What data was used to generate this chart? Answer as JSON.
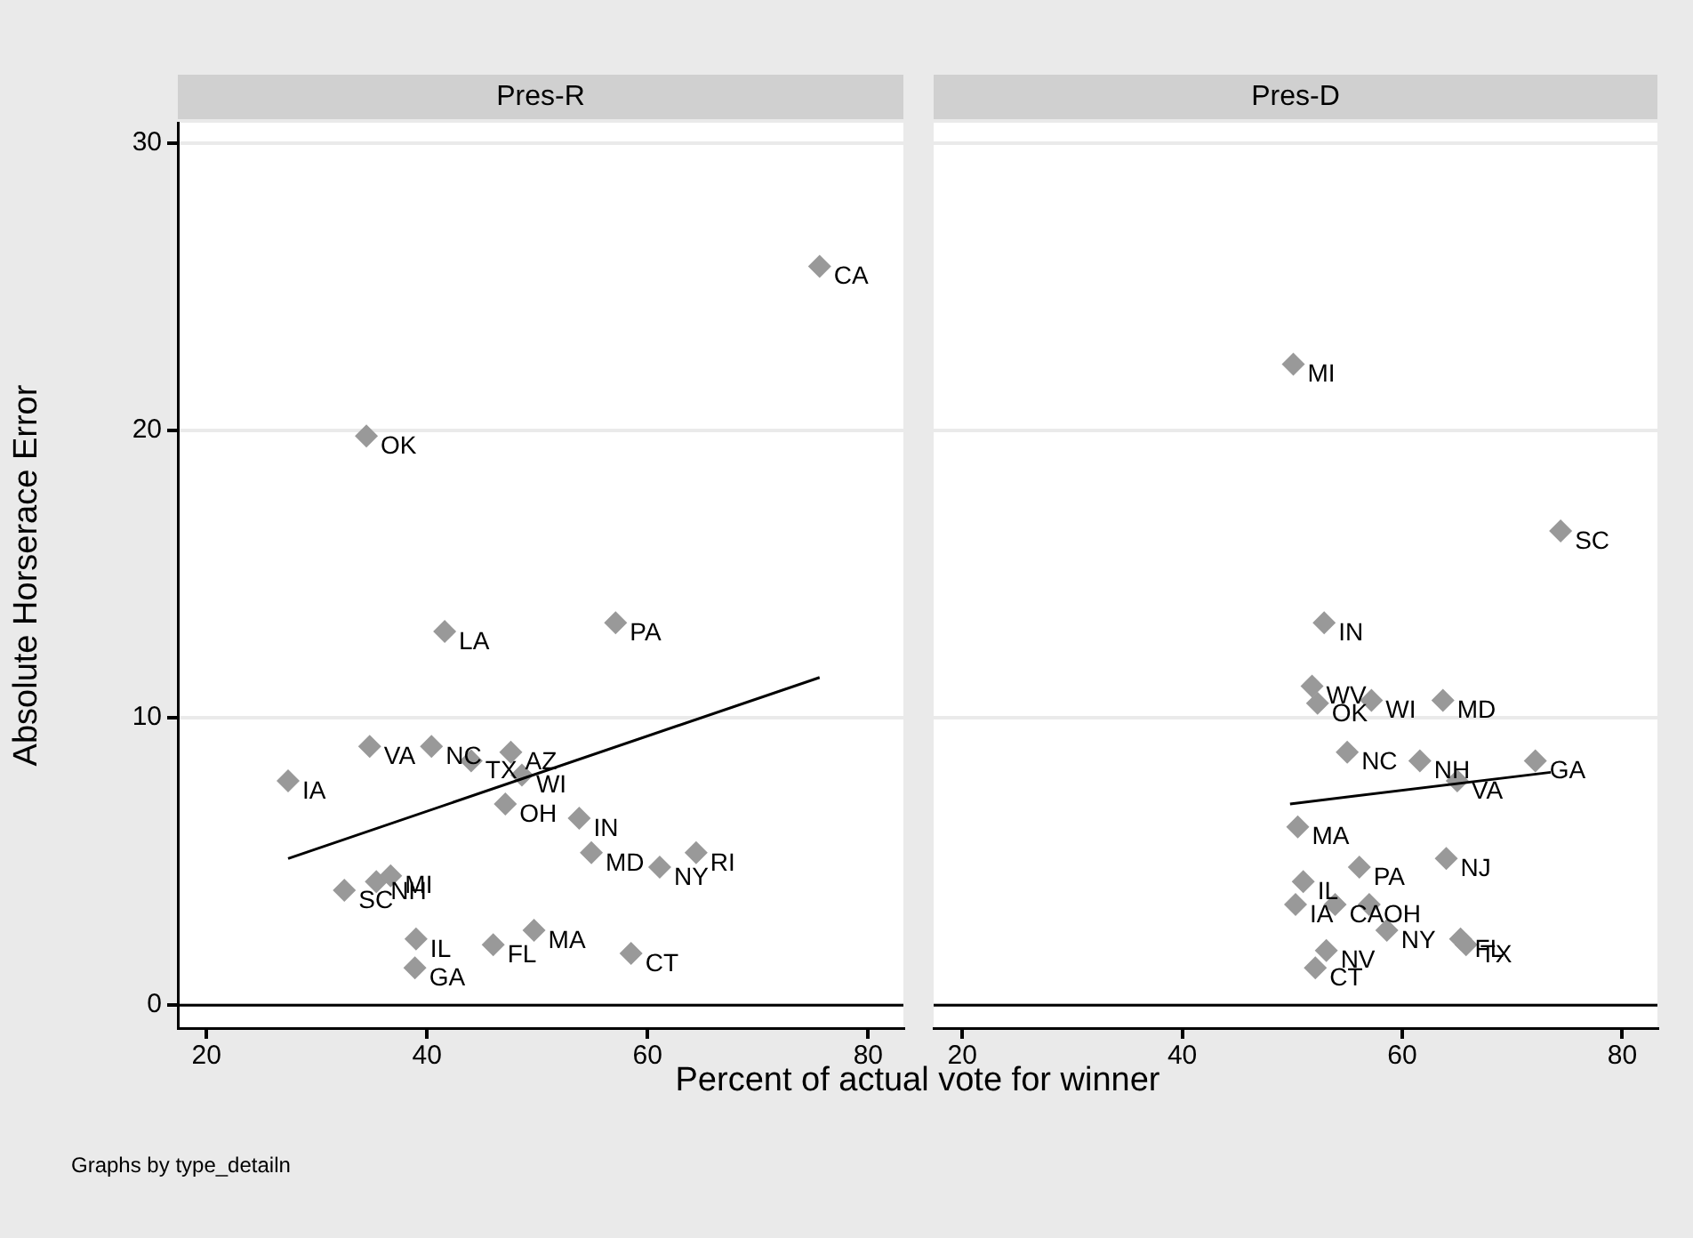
{
  "chart_data": [
    {
      "type": "scatter",
      "title": "Pres-R",
      "ylabel": "Absolute Horserace Error",
      "xlabel": "Percent of actual vote for winner",
      "annotations": [
        "Graphs by type_detailn"
      ],
      "xlim": [
        17.4,
        83.2
      ],
      "xticks": [
        20,
        40,
        60,
        80
      ],
      "ylim": [
        -0.8,
        30.7
      ],
      "yticks": [
        0,
        10,
        20,
        30
      ],
      "grid": "y",
      "marker": "diamond",
      "ref_lines": [
        {
          "axis": "y",
          "value": 0,
          "color": "#000000"
        }
      ],
      "series": [
        {
          "type": "scatter",
          "color": "#999999",
          "x": [
            75.6,
            34.5,
            41.6,
            57.1,
            34.8,
            40.4,
            44.0,
            47.6,
            48.6,
            27.4,
            47.1,
            53.8,
            54.9,
            64.4,
            61.1,
            32.5,
            35.4,
            36.7,
            39.0,
            38.9,
            46.0,
            49.7,
            58.5
          ],
          "values": [
            25.7,
            19.8,
            13.0,
            13.3,
            9.0,
            9.0,
            8.5,
            8.8,
            8.0,
            7.8,
            7.0,
            6.5,
            5.3,
            5.3,
            4.8,
            4.0,
            4.3,
            4.5,
            2.3,
            1.3,
            2.1,
            2.6,
            1.8
          ],
          "value_labels": [
            "CA",
            "OK",
            "LA",
            "PA",
            "VA",
            "NC",
            "TX",
            "AZ",
            "WI",
            "IA",
            "OH",
            "IN",
            "MD",
            "RI",
            "NY",
            "SC",
            "NH",
            "MI",
            "IL",
            "GA",
            "FL",
            "MA",
            "CT"
          ]
        },
        {
          "type": "line",
          "marker": "none",
          "color": "#000000",
          "x": [
            27.4,
            75.6
          ],
          "values": [
            5.1,
            11.4
          ]
        }
      ]
    },
    {
      "type": "scatter",
      "title": "Pres-D",
      "tick_labels": "x",
      "xlim": [
        17.4,
        83.2
      ],
      "xticks": [
        20,
        40,
        60,
        80
      ],
      "ylim": [
        -0.8,
        30.7
      ],
      "yticks": [
        0,
        10,
        20,
        30
      ],
      "grid": "y",
      "marker": "diamond",
      "ref_lines": [
        {
          "axis": "y",
          "value": 0,
          "color": "#000000"
        }
      ],
      "series": [
        {
          "type": "scatter",
          "color": "#999999",
          "x": [
            50.1,
            74.4,
            52.9,
            51.8,
            52.3,
            57.2,
            63.7,
            55.0,
            61.6,
            72.1,
            65.0,
            50.5,
            64.0,
            56.1,
            51.0,
            50.3,
            53.9,
            57.0,
            58.6,
            65.3,
            65.8,
            53.1,
            52.1
          ],
          "values": [
            22.3,
            16.5,
            13.3,
            11.1,
            10.5,
            10.6,
            10.6,
            8.8,
            8.5,
            8.5,
            7.8,
            6.2,
            5.1,
            4.8,
            4.3,
            3.5,
            3.5,
            3.5,
            2.6,
            2.3,
            2.1,
            1.9,
            1.3
          ],
          "value_labels": [
            "MI",
            "SC",
            "IN",
            "WV",
            "OK",
            "WI",
            "MD",
            "NC",
            "NH",
            "GA",
            "VA",
            "MA",
            "NJ",
            "PA",
            "IL",
            "IA",
            "CA",
            "OH",
            "NY",
            "FL",
            "TX",
            "NV",
            "CT"
          ]
        },
        {
          "type": "line",
          "marker": "none",
          "color": "#000000",
          "x": [
            49.8,
            73.5
          ],
          "values": [
            7.0,
            8.1
          ]
        }
      ]
    }
  ]
}
